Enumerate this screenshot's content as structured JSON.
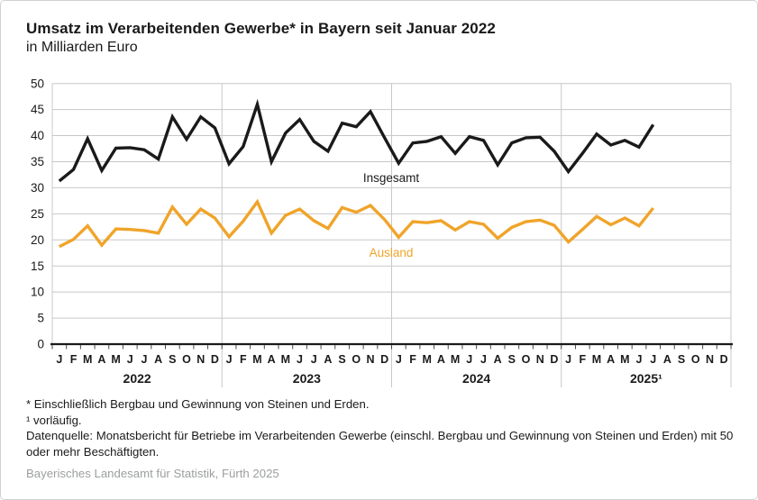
{
  "header": {
    "title": "Umsatz im Verarbeitenden Gewerbe* in Bayern seit Januar 2022",
    "subtitle": "in Milliarden Euro"
  },
  "chart_data": {
    "type": "line",
    "title": "Umsatz im Verarbeitenden Gewerbe* in Bayern seit Januar 2022",
    "ylabel": "in Milliarden Euro",
    "ylim": [
      0,
      50
    ],
    "ytick_step": 5,
    "yticks": [
      0,
      5,
      10,
      15,
      20,
      25,
      30,
      35,
      40,
      45,
      50
    ],
    "grid": true,
    "month_letters": [
      "J",
      "F",
      "M",
      "A",
      "M",
      "J",
      "J",
      "A",
      "S",
      "O",
      "N",
      "D"
    ],
    "year_labels": [
      "2022",
      "2023",
      "2024",
      "2025¹"
    ],
    "colors": {
      "insgesamt": "#1a1a1a",
      "ausland": "#f0a42a",
      "grid": "#c8c8c8",
      "axis": "#1a1a1a"
    },
    "series": [
      {
        "name": "Insgesamt",
        "color": "#1a1a1a",
        "values": [
          31.3,
          33.5,
          39.4,
          33.3,
          37.6,
          37.7,
          37.3,
          35.5,
          43.6,
          39.3,
          43.6,
          41.5,
          34.6,
          37.9,
          46.0,
          35.0,
          40.5,
          43.1,
          38.9,
          37.0,
          42.4,
          41.7,
          44.6,
          39.6,
          34.7,
          38.6,
          38.9,
          39.8,
          36.6,
          39.8,
          39.1,
          34.4,
          38.6,
          39.6,
          39.7,
          37.0,
          33.1,
          36.6,
          40.3,
          38.2,
          39.1,
          37.8,
          42.1,
          null,
          null,
          null,
          null,
          null
        ]
      },
      {
        "name": "Ausland",
        "color": "#f0a42a",
        "values": [
          18.7,
          20.1,
          22.7,
          19.0,
          22.1,
          22.0,
          21.8,
          21.3,
          26.3,
          23.0,
          25.9,
          24.2,
          20.6,
          23.6,
          27.3,
          21.3,
          24.7,
          25.9,
          23.7,
          22.2,
          26.2,
          25.3,
          26.6,
          23.9,
          20.5,
          23.5,
          23.3,
          23.7,
          21.9,
          23.5,
          23.0,
          20.3,
          22.4,
          23.5,
          23.8,
          22.8,
          19.6,
          22.0,
          24.5,
          22.9,
          24.2,
          22.7,
          26.1,
          null,
          null,
          null,
          null,
          null
        ]
      }
    ],
    "series_inline_labels": [
      {
        "text": "Insgesamt",
        "color": "#1a1a1a"
      },
      {
        "text": "Ausland",
        "color": "#f0a42a"
      }
    ],
    "legend_position": "inline"
  },
  "footnotes": {
    "asterisk": "* Einschließlich Bergbau und Gewinnung von Steinen und Erden.",
    "preliminary": "¹ vorläufig.",
    "datasource": "Datenquelle: Monatsbericht für Betriebe im Verarbeitenden Gewerbe (einschl. Bergbau und Gewinnung von Steinen und Erden) mit 50 oder mehr Beschäftigten."
  },
  "source": "Bayerisches Landesamt für Statistik, Fürth 2025"
}
